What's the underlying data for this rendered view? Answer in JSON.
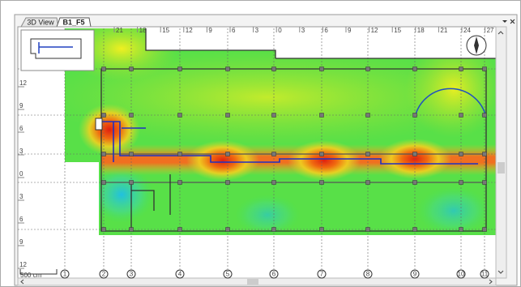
{
  "tabs": [
    "3D View",
    "B1_F5"
  ],
  "top_ruler": [
    "21",
    "18",
    "15",
    "12",
    "9",
    "6",
    "3",
    "0",
    "3",
    "6",
    "9",
    "12",
    "15",
    "18",
    "21",
    "24",
    "27"
  ],
  "left_ruler": [
    "12",
    "9",
    "6",
    "3",
    "0",
    "3",
    "6",
    "9",
    "12"
  ],
  "axis_markers": [
    "1",
    "2",
    "3",
    "4",
    "5",
    "6",
    "7",
    "8",
    "9",
    "10",
    "11"
  ],
  "scale_label": "500 cm"
}
